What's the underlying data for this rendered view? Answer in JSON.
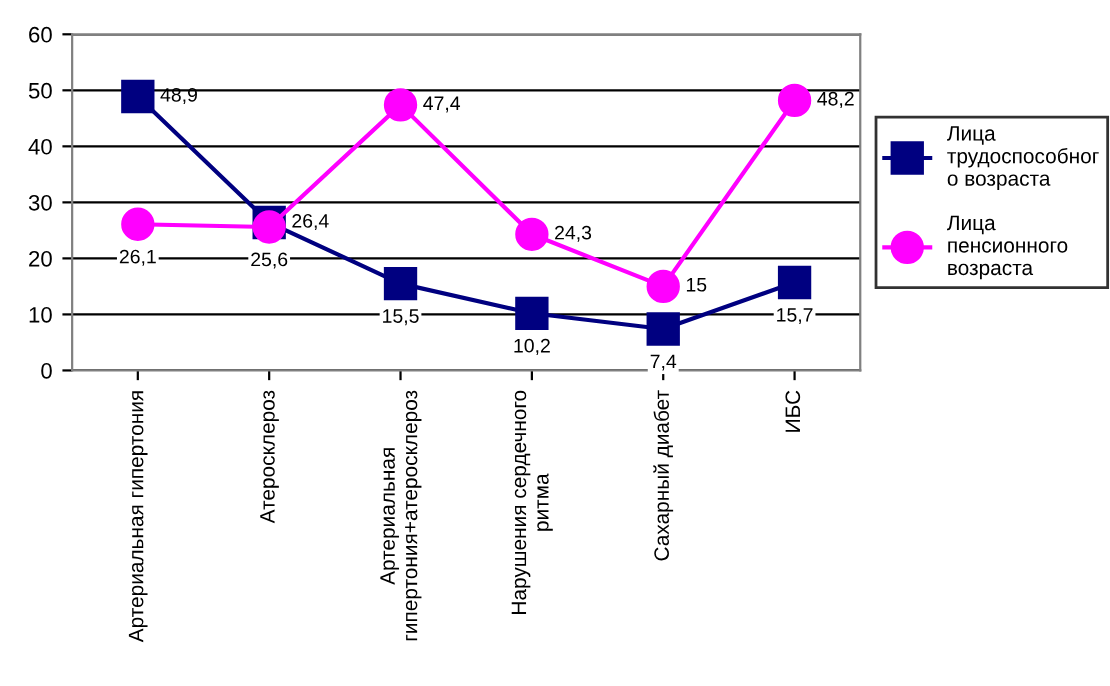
{
  "chart_data": {
    "type": "line",
    "categories": [
      "Артериальная гипертония",
      "Атеросклероз",
      "Артериальная\nгипертония+атеросклероз",
      "Нарушения сердечного\nритма",
      "Сахарный диабет",
      "ИБС"
    ],
    "series": [
      {
        "name": "Лица\nтрудоспособног\nо возраста",
        "color": "#000080",
        "marker": "square",
        "values": [
          48.9,
          26.4,
          15.5,
          10.2,
          7.4,
          15.7
        ],
        "value_labels": [
          "48,9",
          "26,4",
          "15,5",
          "10,2",
          "7,4",
          "15,7"
        ]
      },
      {
        "name": "Лица\nпенсионного\nвозраста",
        "color": "#ff00ff",
        "marker": "circle",
        "values": [
          26.1,
          25.6,
          47.4,
          24.3,
          15,
          48.2
        ],
        "value_labels": [
          "26,1",
          "25,6",
          "47,4",
          "24,3",
          "15",
          "48,2"
        ]
      }
    ],
    "ylim": [
      0,
      60
    ],
    "yticks": [
      0,
      10,
      20,
      30,
      40,
      50,
      60
    ],
    "grid": "y",
    "legend": "right",
    "line_style": "solid"
  }
}
